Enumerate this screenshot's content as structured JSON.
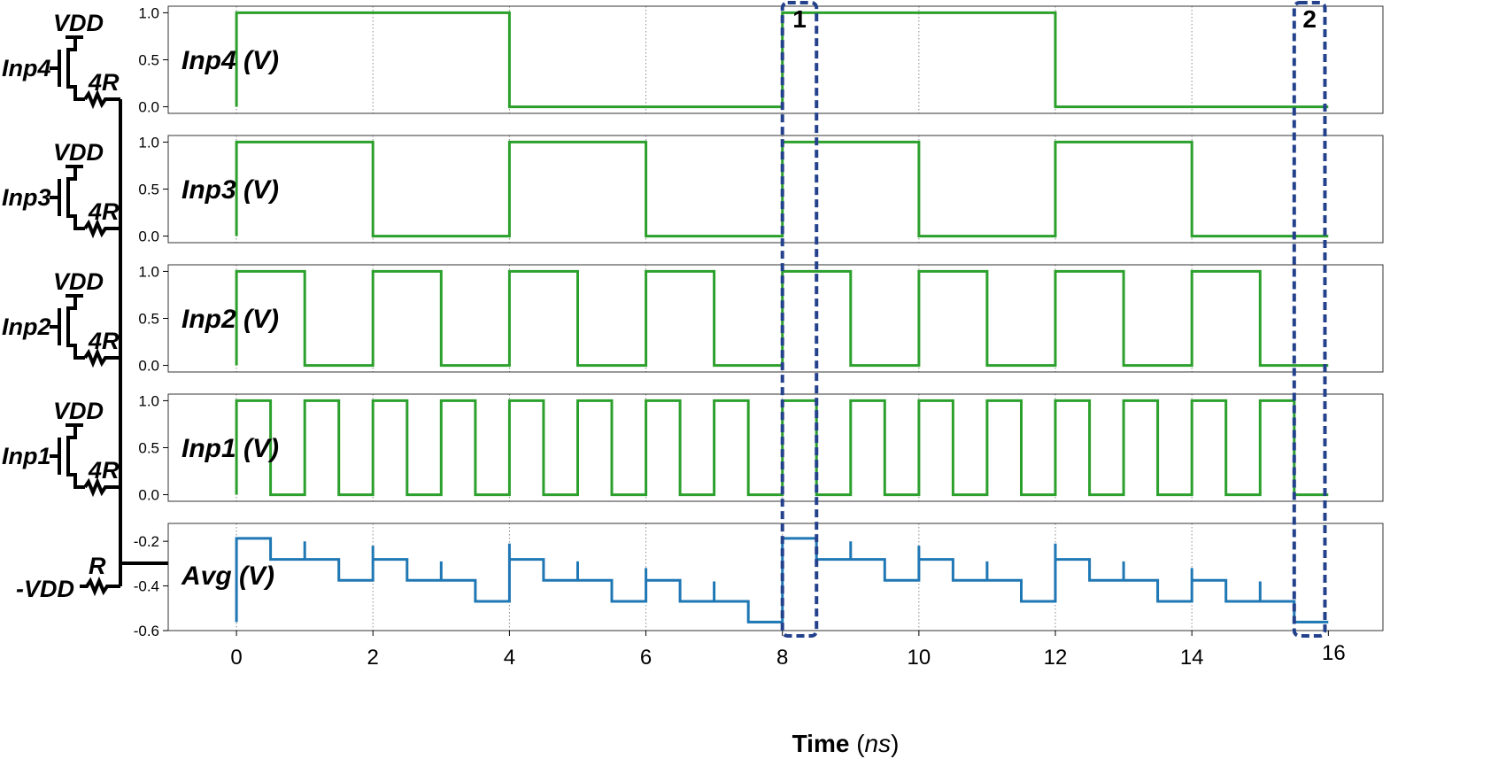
{
  "chart_data": {
    "type": "line",
    "step": true,
    "x_axis": {
      "label_bold": "Time",
      "label_open": " (",
      "label_unit": "ns",
      "label_close": ")",
      "range": [
        -1,
        16.8
      ],
      "ticks": [
        0,
        2,
        4,
        6,
        8,
        10,
        12,
        14,
        16
      ],
      "grid": true
    },
    "panels": [
      {
        "id": "inp4",
        "label": "Inp4 (V)",
        "color": "#2ca02c",
        "ylim": [
          -0.07,
          1.07
        ],
        "yticks": [
          "1.0",
          "0.5",
          "0.0"
        ],
        "ytick_values": [
          1.0,
          0.5,
          0.0
        ],
        "x": [
          0,
          0,
          4,
          4,
          8,
          8,
          12,
          12,
          16
        ],
        "values": [
          0,
          1,
          1,
          0,
          0,
          1,
          1,
          0,
          0
        ]
      },
      {
        "id": "inp3",
        "label": "Inp3 (V)",
        "color": "#2ca02c",
        "ylim": [
          -0.07,
          1.07
        ],
        "yticks": [
          "1.0",
          "0.5",
          "0.0"
        ],
        "ytick_values": [
          1.0,
          0.5,
          0.0
        ],
        "x": [
          0,
          0,
          2,
          2,
          4,
          4,
          6,
          6,
          8,
          8,
          10,
          10,
          12,
          12,
          14,
          14,
          16
        ],
        "values": [
          0,
          1,
          1,
          0,
          0,
          1,
          1,
          0,
          0,
          1,
          1,
          0,
          0,
          1,
          1,
          0,
          0
        ]
      },
      {
        "id": "inp2",
        "label": "Inp2 (V)",
        "color": "#2ca02c",
        "ylim": [
          -0.07,
          1.07
        ],
        "yticks": [
          "1.0",
          "0.5",
          "0.0"
        ],
        "ytick_values": [
          1.0,
          0.5,
          0.0
        ],
        "x": [
          0,
          0,
          1,
          1,
          2,
          2,
          3,
          3,
          4,
          4,
          5,
          5,
          6,
          6,
          7,
          7,
          8,
          8,
          9,
          9,
          10,
          10,
          11,
          11,
          12,
          12,
          13,
          13,
          14,
          14,
          15,
          15,
          16
        ],
        "values": [
          0,
          1,
          1,
          0,
          0,
          1,
          1,
          0,
          0,
          1,
          1,
          0,
          0,
          1,
          1,
          0,
          0,
          1,
          1,
          0,
          0,
          1,
          1,
          0,
          0,
          1,
          1,
          0,
          0,
          1,
          1,
          0,
          0
        ]
      },
      {
        "id": "inp1",
        "label": "Inp1 (V)",
        "color": "#2ca02c",
        "ylim": [
          -0.07,
          1.07
        ],
        "yticks": [
          "1.0",
          "0.5",
          "0.0"
        ],
        "ytick_values": [
          1.0,
          0.5,
          0.0
        ],
        "x": [
          0,
          0,
          0.5,
          0.5,
          1,
          1,
          1.5,
          1.5,
          2,
          2,
          2.5,
          2.5,
          3,
          3,
          3.5,
          3.5,
          4,
          4,
          4.5,
          4.5,
          5,
          5,
          5.5,
          5.5,
          6,
          6,
          6.5,
          6.5,
          7,
          7,
          7.5,
          7.5,
          8,
          8,
          8.5,
          8.5,
          9,
          9,
          9.5,
          9.5,
          10,
          10,
          10.5,
          10.5,
          11,
          11,
          11.5,
          11.5,
          12,
          12,
          12.5,
          12.5,
          13,
          13,
          13.5,
          13.5,
          14,
          14,
          14.5,
          14.5,
          15,
          15,
          15.5,
          15.5,
          16
        ],
        "values": [
          0,
          1,
          1,
          0,
          0,
          1,
          1,
          0,
          0,
          1,
          1,
          0,
          0,
          1,
          1,
          0,
          0,
          1,
          1,
          0,
          0,
          1,
          1,
          0,
          0,
          1,
          1,
          0,
          0,
          1,
          1,
          0,
          0,
          1,
          1,
          0,
          0,
          1,
          1,
          0,
          0,
          1,
          1,
          0,
          0,
          1,
          1,
          0,
          0,
          1,
          1,
          0,
          0,
          1,
          1,
          0,
          0,
          1,
          1,
          0,
          0,
          1,
          1,
          0,
          0
        ]
      },
      {
        "id": "avg",
        "label": "Avg (V)",
        "color": "#1f77b4",
        "ylim": [
          -0.6,
          -0.12
        ],
        "yticks": [
          "-0.2",
          "-0.4",
          "-0.6"
        ],
        "ytick_values": [
          -0.2,
          -0.4,
          -0.6
        ],
        "x": [
          0,
          0,
          0.5,
          0.5,
          1,
          1,
          1,
          1.5,
          1.5,
          2,
          2,
          2,
          2.5,
          2.5,
          3,
          3,
          3,
          3.5,
          3.5,
          4,
          4,
          4,
          4.5,
          4.5,
          5,
          5,
          5,
          5.5,
          5.5,
          6,
          6,
          6,
          6.5,
          6.5,
          7,
          7,
          7,
          7.5,
          7.5,
          8,
          8,
          8.5,
          8.5,
          9,
          9,
          9,
          9.5,
          9.5,
          10,
          10,
          10,
          10.5,
          10.5,
          11,
          11,
          11,
          11.5,
          11.5,
          12,
          12,
          12,
          12.5,
          12.5,
          13,
          13,
          13,
          13.5,
          13.5,
          14,
          14,
          14,
          14.5,
          14.5,
          15,
          15,
          15,
          15.5,
          15.5,
          16
        ],
        "values": [
          -0.562,
          -0.187,
          -0.187,
          -0.281,
          -0.281,
          -0.2,
          -0.281,
          -0.281,
          -0.375,
          -0.375,
          -0.22,
          -0.281,
          -0.281,
          -0.375,
          -0.375,
          -0.29,
          -0.375,
          -0.375,
          -0.469,
          -0.469,
          -0.21,
          -0.281,
          -0.281,
          -0.375,
          -0.375,
          -0.29,
          -0.375,
          -0.375,
          -0.469,
          -0.469,
          -0.32,
          -0.375,
          -0.375,
          -0.469,
          -0.469,
          -0.38,
          -0.469,
          -0.469,
          -0.562,
          -0.562,
          -0.187,
          -0.187,
          -0.281,
          -0.281,
          -0.2,
          -0.281,
          -0.281,
          -0.375,
          -0.375,
          -0.22,
          -0.281,
          -0.281,
          -0.375,
          -0.375,
          -0.29,
          -0.375,
          -0.375,
          -0.469,
          -0.469,
          -0.21,
          -0.281,
          -0.281,
          -0.375,
          -0.375,
          -0.29,
          -0.375,
          -0.375,
          -0.469,
          -0.469,
          -0.32,
          -0.375,
          -0.375,
          -0.469,
          -0.469,
          -0.38,
          -0.469,
          -0.469,
          -0.562,
          -0.562
        ]
      }
    ],
    "highlight_boxes": [
      {
        "label": "1",
        "x_start": 8.0,
        "x_end": 8.5,
        "color": "#24428c"
      },
      {
        "label": "2",
        "x_start": 15.5,
        "x_end": 15.95,
        "color": "#24428c"
      }
    ]
  },
  "circuit": {
    "branches": [
      {
        "input": "Inp4",
        "supply": "VDD",
        "resistor": "4R"
      },
      {
        "input": "Inp3",
        "supply": "VDD",
        "resistor": "4R"
      },
      {
        "input": "Inp2",
        "supply": "VDD",
        "resistor": "4R"
      },
      {
        "input": "Inp1",
        "supply": "VDD",
        "resistor": "4R"
      }
    ],
    "bottom_resistor": "R",
    "bottom_supply": "-VDD"
  }
}
